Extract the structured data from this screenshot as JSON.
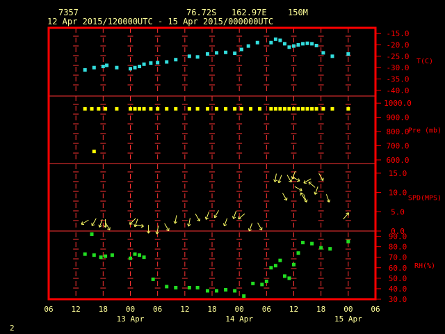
{
  "header": {
    "station_id": "7357",
    "coordinates": "76.72S   162.97E",
    "elevation": "150M",
    "period": "12 Apr 2015/120000UTC - 15 Apr 2015/000000UTC"
  },
  "footer": {
    "page_number": "2"
  },
  "colors": {
    "frame": "#ff0000",
    "grid": "#ff3333",
    "temperature": "#33dddd",
    "pressure": "#ffff00",
    "wind": "#ffff66",
    "humidity": "#22dd22",
    "text": "#ffff99"
  },
  "chart_data": {
    "type": "scatter",
    "x_unit": "hours since 12 Apr 2015 00 UTC",
    "x_tick_labels": [
      "06",
      "12",
      "18",
      "00",
      "06",
      "12",
      "18",
      "00",
      "06",
      "12",
      "18",
      "00",
      "06"
    ],
    "x_tick_hours": [
      6,
      12,
      18,
      24,
      30,
      36,
      42,
      48,
      54,
      60,
      66,
      72,
      78
    ],
    "date_labels": [
      {
        "label": "13 Apr",
        "hour": 24
      },
      {
        "label": "14 Apr",
        "hour": 48
      },
      {
        "label": "15 Apr",
        "hour": 72
      }
    ],
    "panels": [
      {
        "name": "T(C)",
        "ylim": [
          -42.5,
          -12.5
        ],
        "yticks": [
          -15,
          -20,
          -25,
          -30,
          -35,
          -40
        ],
        "ytick_labels": [
          "-15.0",
          "-20.0",
          "-25.0",
          "-30.0",
          "-35.0",
          "-40.0"
        ],
        "series": [
          {
            "color": "#33dddd",
            "points": [
              [
                14,
                -31.0
              ],
              [
                16,
                -30.0
              ],
              [
                18,
                -29.5
              ],
              [
                18.8,
                -29.0
              ],
              [
                21,
                -30.0
              ],
              [
                24,
                -30.5
              ],
              [
                25,
                -30.0
              ],
              [
                26,
                -29.5
              ],
              [
                27,
                -28.5
              ],
              [
                28.5,
                -28.0
              ],
              [
                30,
                -27.8
              ],
              [
                32,
                -27.5
              ],
              [
                34,
                -26.5
              ],
              [
                37,
                -25.0
              ],
              [
                38.8,
                -25.3
              ],
              [
                41,
                -24.0
              ],
              [
                43,
                -23.5
              ],
              [
                45,
                -23.3
              ],
              [
                47,
                -23.7
              ],
              [
                48.5,
                -22.0
              ],
              [
                50,
                -20.5
              ],
              [
                52,
                -19.0
              ],
              [
                55,
                -19.0
              ],
              [
                56,
                -17.5
              ],
              [
                57,
                -18.0
              ],
              [
                58,
                -19.5
              ],
              [
                59,
                -21.0
              ],
              [
                60,
                -20.5
              ],
              [
                61,
                -20.0
              ],
              [
                62,
                -19.5
              ],
              [
                63,
                -19.3
              ],
              [
                64,
                -19.5
              ],
              [
                65,
                -20.3
              ],
              [
                66.5,
                -23.5
              ],
              [
                68.5,
                -25.0
              ],
              [
                72,
                -24.0
              ]
            ]
          }
        ]
      },
      {
        "name": "Pre (mb)",
        "ylim": [
          575,
          1050
        ],
        "yticks": [
          1000,
          900,
          800,
          700,
          600
        ],
        "ytick_labels": [
          "1000.0",
          "900.0",
          "800.0",
          "700.0",
          "600.0"
        ],
        "series": [
          {
            "color": "#ffff00",
            "points": [
              [
                14,
                960
              ],
              [
                15.5,
                960
              ],
              [
                17,
                960
              ],
              [
                18.5,
                960
              ],
              [
                21,
                960
              ],
              [
                24,
                960
              ],
              [
                25,
                960
              ],
              [
                26,
                960
              ],
              [
                27,
                960
              ],
              [
                28.5,
                960
              ],
              [
                30,
                960
              ],
              [
                32,
                960
              ],
              [
                34,
                960
              ],
              [
                37,
                960
              ],
              [
                38.8,
                960
              ],
              [
                41,
                960
              ],
              [
                43,
                960
              ],
              [
                45,
                960
              ],
              [
                47,
                960
              ],
              [
                48.5,
                960
              ],
              [
                50.5,
                960
              ],
              [
                52.5,
                960
              ],
              [
                55,
                960
              ],
              [
                56,
                960
              ],
              [
                57,
                960
              ],
              [
                58,
                960
              ],
              [
                59,
                960
              ],
              [
                60,
                960
              ],
              [
                61,
                960
              ],
              [
                62,
                960
              ],
              [
                63,
                960
              ],
              [
                64,
                960
              ],
              [
                65,
                960
              ],
              [
                66.5,
                960
              ],
              [
                68.5,
                960
              ],
              [
                72,
                960
              ],
              [
                16,
                660
              ]
            ]
          }
        ]
      },
      {
        "name": "SPD(MPS)",
        "ylim": [
          0,
          17.5
        ],
        "yticks": [
          15,
          10,
          5,
          0
        ],
        "ytick_labels": [
          "15.0",
          "10.0",
          "5.0",
          "0.0"
        ],
        "series": [
          {
            "color": "#ffff66",
            "points": [
              [
                14,
                2.3,
                240
              ],
              [
                16,
                2.3,
                210
              ],
              [
                17.5,
                2.0,
                200
              ],
              [
                18.5,
                2.0,
                180
              ],
              [
                19,
                1.2,
                150
              ],
              [
                24.5,
                2.5,
                225
              ],
              [
                25.3,
                2.1,
                200
              ],
              [
                26,
                1.4,
                100
              ],
              [
                28,
                0.5,
                180
              ],
              [
                30,
                0.3,
                190
              ],
              [
                32,
                1.0,
                150
              ],
              [
                34,
                3.0,
                190
              ],
              [
                37,
                2.3,
                190
              ],
              [
                38.8,
                3.5,
                150
              ],
              [
                41,
                4.0,
                200
              ],
              [
                43,
                4.4,
                210
              ],
              [
                45,
                2.3,
                200
              ],
              [
                47,
                4.2,
                200
              ],
              [
                48.5,
                3.8,
                230
              ],
              [
                50.5,
                1.0,
                200
              ],
              [
                52.5,
                1.2,
                150
              ],
              [
                56,
                13.8,
                190
              ],
              [
                57,
                13.5,
                200
              ],
              [
                58,
                8.9,
                150
              ],
              [
                59,
                13.6,
                150
              ],
              [
                60,
                14.5,
                200
              ],
              [
                60.5,
                13.5,
                120
              ],
              [
                61,
                11.0,
                120
              ],
              [
                62,
                9.0,
                330
              ],
              [
                62.5,
                8.5,
                160
              ],
              [
                63,
                13.0,
                240
              ],
              [
                64,
                12.0,
                310
              ],
              [
                65,
                10.5,
                200
              ],
              [
                66,
                14.0,
                150
              ],
              [
                67.5,
                8.5,
                160
              ],
              [
                71.5,
                3.9,
                40
              ]
            ]
          }
        ]
      },
      {
        "name": "RH(%)",
        "ylim": [
          30,
          95
        ],
        "yticks": [
          90,
          80,
          70,
          60,
          50,
          40,
          30
        ],
        "ytick_labels": [
          "90.0",
          "80.0",
          "70.0",
          "60.0",
          "50.0",
          "40.0",
          "30.0"
        ],
        "series": [
          {
            "color": "#22dd22",
            "points": [
              [
                14,
                73
              ],
              [
                15.5,
                92
              ],
              [
                16,
                72
              ],
              [
                17.5,
                70
              ],
              [
                18.5,
                71
              ],
              [
                20,
                72
              ],
              [
                24,
                69
              ],
              [
                25,
                73
              ],
              [
                26,
                72
              ],
              [
                27,
                70
              ],
              [
                29,
                49
              ],
              [
                32,
                42
              ],
              [
                34,
                41
              ],
              [
                37,
                41
              ],
              [
                38.8,
                41
              ],
              [
                41,
                38
              ],
              [
                43,
                38
              ],
              [
                45,
                39
              ],
              [
                47,
                38
              ],
              [
                49,
                33
              ],
              [
                51,
                45
              ],
              [
                53,
                44
              ],
              [
                54,
                47
              ],
              [
                55,
                60
              ],
              [
                56,
                62
              ],
              [
                57,
                67
              ],
              [
                58,
                52
              ],
              [
                59,
                50
              ],
              [
                60,
                63
              ],
              [
                61,
                74
              ],
              [
                62,
                84
              ],
              [
                64,
                83
              ],
              [
                66,
                79
              ],
              [
                68,
                78
              ],
              [
                72,
                85
              ]
            ]
          }
        ]
      }
    ]
  }
}
